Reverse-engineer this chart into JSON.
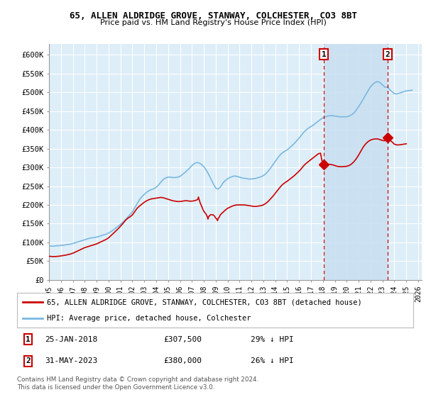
{
  "title1": "65, ALLEN ALDRIDGE GROVE, STANWAY, COLCHESTER, CO3 8BT",
  "title2": "Price paid vs. HM Land Registry's House Price Index (HPI)",
  "xlim_start": 1995.0,
  "xlim_end": 2026.3,
  "ylim_bottom": 0,
  "ylim_top": 630000,
  "yticks": [
    0,
    50000,
    100000,
    150000,
    200000,
    250000,
    300000,
    350000,
    400000,
    450000,
    500000,
    550000,
    600000
  ],
  "ytick_labels": [
    "£0",
    "£50K",
    "£100K",
    "£150K",
    "£200K",
    "£250K",
    "£300K",
    "£350K",
    "£400K",
    "£450K",
    "£500K",
    "£550K",
    "£600K"
  ],
  "xticks": [
    1995,
    1996,
    1997,
    1998,
    1999,
    2000,
    2001,
    2002,
    2003,
    2004,
    2005,
    2006,
    2007,
    2008,
    2009,
    2010,
    2011,
    2012,
    2013,
    2014,
    2015,
    2016,
    2017,
    2018,
    2019,
    2020,
    2021,
    2022,
    2023,
    2024,
    2025,
    2026
  ],
  "hpi_color": "#7ab8e0",
  "sale_color": "#cc0000",
  "bg_color": "#ddeef8",
  "shade_color": "#c8dff0",
  "grid_color": "#ffffff",
  "marker1_x": 2018.07,
  "marker1_y": 307500,
  "marker2_x": 2023.42,
  "marker2_y": 380000,
  "legend_label1": "65, ALLEN ALDRIDGE GROVE, STANWAY, COLCHESTER, CO3 8BT (detached house)",
  "legend_label2": "HPI: Average price, detached house, Colchester",
  "footer1": "Contains HM Land Registry data © Crown copyright and database right 2024.",
  "footer2": "This data is licensed under the Open Government Licence v3.0.",
  "sale1_date": "25-JAN-2018",
  "sale1_price": "£307,500",
  "sale1_hpi": "29% ↓ HPI",
  "sale2_date": "31-MAY-2023",
  "sale2_price": "£380,000",
  "sale2_hpi": "26% ↓ HPI",
  "hpi_data": [
    [
      1995.0,
      91000
    ],
    [
      1995.1,
      90500
    ],
    [
      1995.2,
      90000
    ],
    [
      1995.3,
      89800
    ],
    [
      1995.4,
      90200
    ],
    [
      1995.5,
      90500
    ],
    [
      1995.6,
      90800
    ],
    [
      1995.7,
      91200
    ],
    [
      1995.8,
      91000
    ],
    [
      1995.9,
      91500
    ],
    [
      1996.0,
      92000
    ],
    [
      1996.2,
      92500
    ],
    [
      1996.4,
      93500
    ],
    [
      1996.6,
      94500
    ],
    [
      1996.8,
      95500
    ],
    [
      1997.0,
      97000
    ],
    [
      1997.2,
      99000
    ],
    [
      1997.4,
      101000
    ],
    [
      1997.6,
      103000
    ],
    [
      1997.8,
      105000
    ],
    [
      1998.0,
      107000
    ],
    [
      1998.2,
      109000
    ],
    [
      1998.4,
      111000
    ],
    [
      1998.6,
      112000
    ],
    [
      1998.8,
      113000
    ],
    [
      1999.0,
      114000
    ],
    [
      1999.2,
      116000
    ],
    [
      1999.4,
      118000
    ],
    [
      1999.6,
      120000
    ],
    [
      1999.8,
      122000
    ],
    [
      2000.0,
      125000
    ],
    [
      2000.2,
      129000
    ],
    [
      2000.4,
      133000
    ],
    [
      2000.6,
      138000
    ],
    [
      2000.8,
      143000
    ],
    [
      2001.0,
      148000
    ],
    [
      2001.2,
      154000
    ],
    [
      2001.4,
      160000
    ],
    [
      2001.6,
      167000
    ],
    [
      2001.8,
      174000
    ],
    [
      2002.0,
      181000
    ],
    [
      2002.2,
      192000
    ],
    [
      2002.4,
      203000
    ],
    [
      2002.6,
      214000
    ],
    [
      2002.8,
      222000
    ],
    [
      2003.0,
      228000
    ],
    [
      2003.2,
      234000
    ],
    [
      2003.4,
      238000
    ],
    [
      2003.6,
      241000
    ],
    [
      2003.8,
      243000
    ],
    [
      2004.0,
      247000
    ],
    [
      2004.2,
      253000
    ],
    [
      2004.4,
      261000
    ],
    [
      2004.6,
      268000
    ],
    [
      2004.8,
      272000
    ],
    [
      2005.0,
      274000
    ],
    [
      2005.2,
      274000
    ],
    [
      2005.4,
      273000
    ],
    [
      2005.6,
      273000
    ],
    [
      2005.8,
      274000
    ],
    [
      2006.0,
      276000
    ],
    [
      2006.2,
      281000
    ],
    [
      2006.4,
      286000
    ],
    [
      2006.6,
      292000
    ],
    [
      2006.8,
      298000
    ],
    [
      2007.0,
      305000
    ],
    [
      2007.2,
      310000
    ],
    [
      2007.4,
      313000
    ],
    [
      2007.6,
      312000
    ],
    [
      2007.8,
      308000
    ],
    [
      2008.0,
      302000
    ],
    [
      2008.2,
      293000
    ],
    [
      2008.4,
      282000
    ],
    [
      2008.6,
      269000
    ],
    [
      2008.8,
      256000
    ],
    [
      2009.0,
      245000
    ],
    [
      2009.2,
      242000
    ],
    [
      2009.4,
      248000
    ],
    [
      2009.6,
      258000
    ],
    [
      2009.8,
      265000
    ],
    [
      2010.0,
      270000
    ],
    [
      2010.2,
      273000
    ],
    [
      2010.4,
      276000
    ],
    [
      2010.6,
      277000
    ],
    [
      2010.8,
      276000
    ],
    [
      2011.0,
      274000
    ],
    [
      2011.2,
      272000
    ],
    [
      2011.4,
      271000
    ],
    [
      2011.6,
      270000
    ],
    [
      2011.8,
      269000
    ],
    [
      2012.0,
      269000
    ],
    [
      2012.2,
      270000
    ],
    [
      2012.4,
      271000
    ],
    [
      2012.6,
      273000
    ],
    [
      2012.8,
      275000
    ],
    [
      2013.0,
      278000
    ],
    [
      2013.2,
      283000
    ],
    [
      2013.4,
      290000
    ],
    [
      2013.6,
      298000
    ],
    [
      2013.8,
      307000
    ],
    [
      2014.0,
      316000
    ],
    [
      2014.2,
      325000
    ],
    [
      2014.4,
      333000
    ],
    [
      2014.6,
      339000
    ],
    [
      2014.8,
      343000
    ],
    [
      2015.0,
      347000
    ],
    [
      2015.2,
      352000
    ],
    [
      2015.4,
      358000
    ],
    [
      2015.6,
      364000
    ],
    [
      2015.8,
      371000
    ],
    [
      2016.0,
      378000
    ],
    [
      2016.2,
      386000
    ],
    [
      2016.4,
      394000
    ],
    [
      2016.6,
      400000
    ],
    [
      2016.8,
      405000
    ],
    [
      2017.0,
      409000
    ],
    [
      2017.2,
      413000
    ],
    [
      2017.4,
      418000
    ],
    [
      2017.6,
      423000
    ],
    [
      2017.8,
      428000
    ],
    [
      2018.0,
      432000
    ],
    [
      2018.07,
      433000
    ],
    [
      2018.2,
      435000
    ],
    [
      2018.4,
      437000
    ],
    [
      2018.6,
      438000
    ],
    [
      2018.8,
      438000
    ],
    [
      2019.0,
      437000
    ],
    [
      2019.2,
      436000
    ],
    [
      2019.4,
      435000
    ],
    [
      2019.6,
      435000
    ],
    [
      2019.8,
      435000
    ],
    [
      2020.0,
      435000
    ],
    [
      2020.2,
      437000
    ],
    [
      2020.4,
      440000
    ],
    [
      2020.6,
      445000
    ],
    [
      2020.8,
      453000
    ],
    [
      2021.0,
      462000
    ],
    [
      2021.2,
      472000
    ],
    [
      2021.4,
      483000
    ],
    [
      2021.6,
      494000
    ],
    [
      2021.8,
      505000
    ],
    [
      2022.0,
      515000
    ],
    [
      2022.2,
      522000
    ],
    [
      2022.4,
      527000
    ],
    [
      2022.6,
      529000
    ],
    [
      2022.8,
      526000
    ],
    [
      2023.0,
      520000
    ],
    [
      2023.2,
      514000
    ],
    [
      2023.42,
      514000
    ],
    [
      2023.5,
      512000
    ],
    [
      2023.6,
      508000
    ],
    [
      2023.8,
      502000
    ],
    [
      2024.0,
      497000
    ],
    [
      2024.2,
      496000
    ],
    [
      2024.4,
      498000
    ],
    [
      2024.6,
      500000
    ],
    [
      2024.8,
      502000
    ],
    [
      2025.0,
      504000
    ],
    [
      2025.5,
      506000
    ]
  ],
  "red_data": [
    [
      1995.0,
      63000
    ],
    [
      1995.2,
      62500
    ],
    [
      1995.4,
      62000
    ],
    [
      1995.6,
      62500
    ],
    [
      1995.8,
      63000
    ],
    [
      1996.0,
      64000
    ],
    [
      1996.2,
      65000
    ],
    [
      1996.4,
      66000
    ],
    [
      1996.6,
      67500
    ],
    [
      1996.8,
      69000
    ],
    [
      1997.0,
      71000
    ],
    [
      1997.2,
      74000
    ],
    [
      1997.4,
      77000
    ],
    [
      1997.6,
      80000
    ],
    [
      1997.8,
      83000
    ],
    [
      1998.0,
      86000
    ],
    [
      1998.2,
      88000
    ],
    [
      1998.4,
      90000
    ],
    [
      1998.6,
      92000
    ],
    [
      1998.8,
      94000
    ],
    [
      1999.0,
      96000
    ],
    [
      1999.2,
      99000
    ],
    [
      1999.4,
      102000
    ],
    [
      1999.6,
      105000
    ],
    [
      1999.8,
      108000
    ],
    [
      2000.0,
      112000
    ],
    [
      2000.2,
      118000
    ],
    [
      2000.4,
      124000
    ],
    [
      2000.6,
      130000
    ],
    [
      2000.8,
      136000
    ],
    [
      2001.0,
      143000
    ],
    [
      2001.2,
      150000
    ],
    [
      2001.4,
      158000
    ],
    [
      2001.6,
      164000
    ],
    [
      2001.8,
      168000
    ],
    [
      2002.0,
      173000
    ],
    [
      2002.2,
      182000
    ],
    [
      2002.4,
      191000
    ],
    [
      2002.6,
      197000
    ],
    [
      2002.8,
      202000
    ],
    [
      2003.0,
      207000
    ],
    [
      2003.2,
      211000
    ],
    [
      2003.4,
      214000
    ],
    [
      2003.6,
      216000
    ],
    [
      2003.8,
      217000
    ],
    [
      2004.0,
      218000
    ],
    [
      2004.2,
      219000
    ],
    [
      2004.4,
      220000
    ],
    [
      2004.6,
      219000
    ],
    [
      2004.8,
      217000
    ],
    [
      2005.0,
      215000
    ],
    [
      2005.2,
      213000
    ],
    [
      2005.4,
      211000
    ],
    [
      2005.6,
      210000
    ],
    [
      2005.8,
      209000
    ],
    [
      2006.0,
      209000
    ],
    [
      2006.2,
      210000
    ],
    [
      2006.4,
      211000
    ],
    [
      2006.6,
      211000
    ],
    [
      2006.8,
      210000
    ],
    [
      2007.0,
      210000
    ],
    [
      2007.2,
      211000
    ],
    [
      2007.4,
      213000
    ],
    [
      2007.5,
      215000
    ],
    [
      2007.55,
      221000
    ],
    [
      2007.6,
      215000
    ],
    [
      2007.7,
      205000
    ],
    [
      2007.8,
      198000
    ],
    [
      2007.9,
      190000
    ],
    [
      2008.0,
      183000
    ],
    [
      2008.2,
      175000
    ],
    [
      2008.3,
      168000
    ],
    [
      2008.35,
      162000
    ],
    [
      2008.4,
      168000
    ],
    [
      2008.5,
      172000
    ],
    [
      2008.6,
      174000
    ],
    [
      2008.7,
      174000
    ],
    [
      2008.8,
      173000
    ],
    [
      2008.9,
      170000
    ],
    [
      2009.0,
      165000
    ],
    [
      2009.1,
      162000
    ],
    [
      2009.15,
      158000
    ],
    [
      2009.2,
      163000
    ],
    [
      2009.3,
      168000
    ],
    [
      2009.4,
      174000
    ],
    [
      2009.6,
      180000
    ],
    [
      2009.8,
      186000
    ],
    [
      2010.0,
      191000
    ],
    [
      2010.2,
      194000
    ],
    [
      2010.4,
      197000
    ],
    [
      2010.6,
      199000
    ],
    [
      2010.8,
      200000
    ],
    [
      2011.0,
      200000
    ],
    [
      2011.2,
      200000
    ],
    [
      2011.4,
      200000
    ],
    [
      2011.6,
      199000
    ],
    [
      2011.8,
      198000
    ],
    [
      2012.0,
      197000
    ],
    [
      2012.2,
      196000
    ],
    [
      2012.4,
      196000
    ],
    [
      2012.6,
      197000
    ],
    [
      2012.8,
      198000
    ],
    [
      2013.0,
      200000
    ],
    [
      2013.2,
      204000
    ],
    [
      2013.4,
      209000
    ],
    [
      2013.6,
      216000
    ],
    [
      2013.8,
      223000
    ],
    [
      2014.0,
      231000
    ],
    [
      2014.2,
      239000
    ],
    [
      2014.4,
      247000
    ],
    [
      2014.6,
      254000
    ],
    [
      2014.8,
      259000
    ],
    [
      2015.0,
      263000
    ],
    [
      2015.2,
      268000
    ],
    [
      2015.4,
      273000
    ],
    [
      2015.6,
      278000
    ],
    [
      2015.8,
      284000
    ],
    [
      2016.0,
      290000
    ],
    [
      2016.2,
      297000
    ],
    [
      2016.4,
      305000
    ],
    [
      2016.6,
      311000
    ],
    [
      2016.8,
      316000
    ],
    [
      2017.0,
      321000
    ],
    [
      2017.2,
      326000
    ],
    [
      2017.4,
      331000
    ],
    [
      2017.6,
      336000
    ],
    [
      2017.8,
      338000
    ],
    [
      2018.0,
      305000
    ],
    [
      2018.07,
      307500
    ],
    [
      2018.2,
      308000
    ],
    [
      2018.4,
      308500
    ],
    [
      2018.6,
      308000
    ],
    [
      2018.8,
      307000
    ],
    [
      2019.0,
      305000
    ],
    [
      2019.2,
      303000
    ],
    [
      2019.4,
      302000
    ],
    [
      2019.6,
      302000
    ],
    [
      2019.8,
      302500
    ],
    [
      2020.0,
      303000
    ],
    [
      2020.2,
      305000
    ],
    [
      2020.4,
      309000
    ],
    [
      2020.6,
      315000
    ],
    [
      2020.8,
      323000
    ],
    [
      2021.0,
      333000
    ],
    [
      2021.2,
      344000
    ],
    [
      2021.4,
      355000
    ],
    [
      2021.6,
      363000
    ],
    [
      2021.8,
      369000
    ],
    [
      2022.0,
      373000
    ],
    [
      2022.2,
      375000
    ],
    [
      2022.4,
      376000
    ],
    [
      2022.6,
      376000
    ],
    [
      2022.8,
      374000
    ],
    [
      2023.0,
      372000
    ],
    [
      2023.2,
      371000
    ],
    [
      2023.42,
      380000
    ],
    [
      2023.5,
      378000
    ],
    [
      2023.6,
      374000
    ],
    [
      2023.8,
      368000
    ],
    [
      2024.0,
      362000
    ],
    [
      2024.2,
      360000
    ],
    [
      2024.4,
      360000
    ],
    [
      2024.6,
      361000
    ],
    [
      2024.8,
      362000
    ],
    [
      2025.0,
      363000
    ]
  ]
}
